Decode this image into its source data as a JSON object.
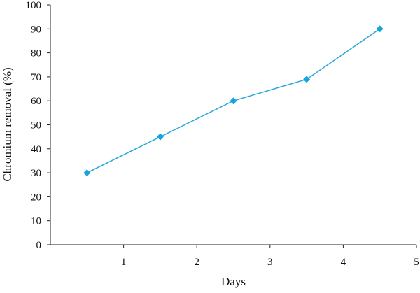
{
  "chart_data": {
    "type": "line",
    "title": "",
    "xlabel": "Days",
    "ylabel": "Chromium removal (%)",
    "x": [
      0.5,
      1.5,
      2.5,
      3.5,
      4.5
    ],
    "y": [
      30,
      45,
      60,
      69,
      90
    ],
    "xlim": [
      0,
      5
    ],
    "ylim": [
      0,
      100
    ],
    "x_ticks": [
      1,
      2,
      3,
      4,
      5
    ],
    "y_ticks": [
      0,
      10,
      20,
      30,
      40,
      50,
      60,
      70,
      80,
      90,
      100
    ],
    "marker": "diamond",
    "grid": false,
    "legend": "none",
    "colors": {
      "line": "#2aa7d8",
      "marker": "#17a3dd",
      "axis": "#222222"
    }
  }
}
